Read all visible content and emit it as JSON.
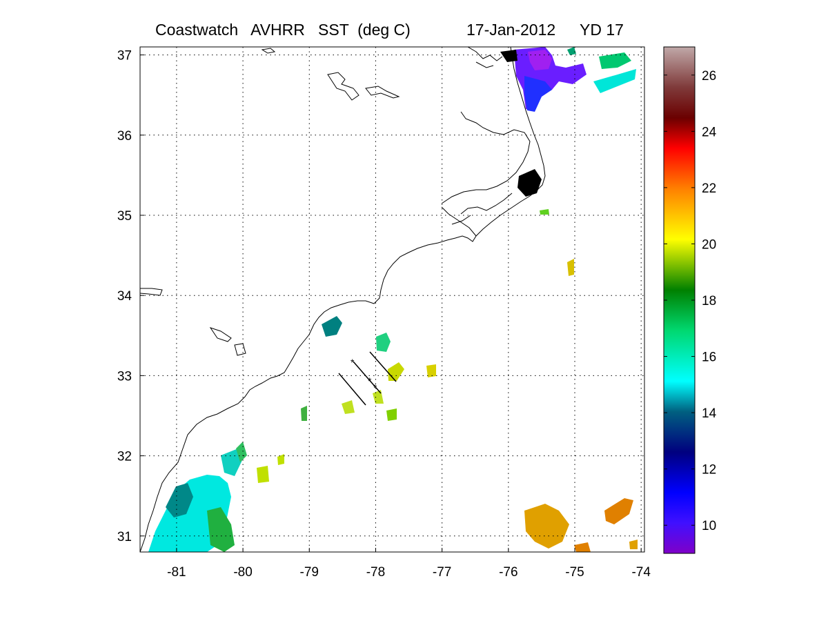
{
  "title": {
    "left": "Coastwatch   AVHRR   SST  (deg C)",
    "date": "17-Jan-2012",
    "yd": "YD 17"
  },
  "map": {
    "lon_range": [
      -81.55,
      -73.95
    ],
    "lat_range": [
      30.8,
      37.1
    ],
    "lon_ticks": [
      "-81",
      "-80",
      "-79",
      "-78",
      "-77",
      "-76",
      "-75",
      "-74"
    ],
    "lat_ticks": [
      "37",
      "36",
      "35",
      "34",
      "33",
      "32",
      "31"
    ],
    "grid": "dotted",
    "coastline_color": "#000000",
    "track_lines_color": "#000000"
  },
  "colorbar": {
    "range": [
      9,
      27
    ],
    "ticks": [
      "26",
      "24",
      "22",
      "20",
      "18",
      "16",
      "14",
      "12",
      "10"
    ],
    "stops": [
      "#7f00c8",
      "#0000ff",
      "#00007f",
      "#00ffff",
      "#00d870",
      "#00a000",
      "#ffff00",
      "#ff8000",
      "#ff0000",
      "#6b0000",
      "#7f3a3a",
      "#c0a8a8"
    ]
  }
}
